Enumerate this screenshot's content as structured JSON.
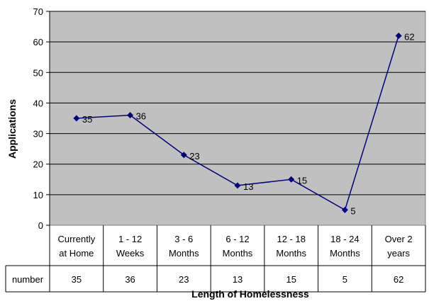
{
  "chart_data": {
    "type": "line",
    "categories": [
      "Currently at Home",
      "1 - 12 Weeks",
      "3 - 6 Months",
      "6 - 12 Months",
      "12 - 18 Months",
      "18 - 24 Months",
      "Over 2 years"
    ],
    "category_lines": [
      [
        "Currently",
        "at Home"
      ],
      [
        "1 - 12",
        "Weeks"
      ],
      [
        "3 - 6",
        "Months"
      ],
      [
        "6 - 12",
        "Months"
      ],
      [
        "12 - 18",
        "Months"
      ],
      [
        "18 - 24",
        "Months"
      ],
      [
        "Over 2",
        "years"
      ]
    ],
    "series": [
      {
        "name": "number",
        "values": [
          35,
          36,
          23,
          13,
          15,
          5,
          62
        ]
      }
    ],
    "xlabel": "Length of Homelessness",
    "ylabel": "Applications",
    "ylim": [
      0,
      70
    ],
    "yticks": [
      0,
      10,
      20,
      30,
      40,
      50,
      60,
      70
    ],
    "grid": true,
    "data_table": true,
    "colors": {
      "plot_bg": "#c0c0c0",
      "line": "#000080",
      "grid": "#000000"
    }
  }
}
